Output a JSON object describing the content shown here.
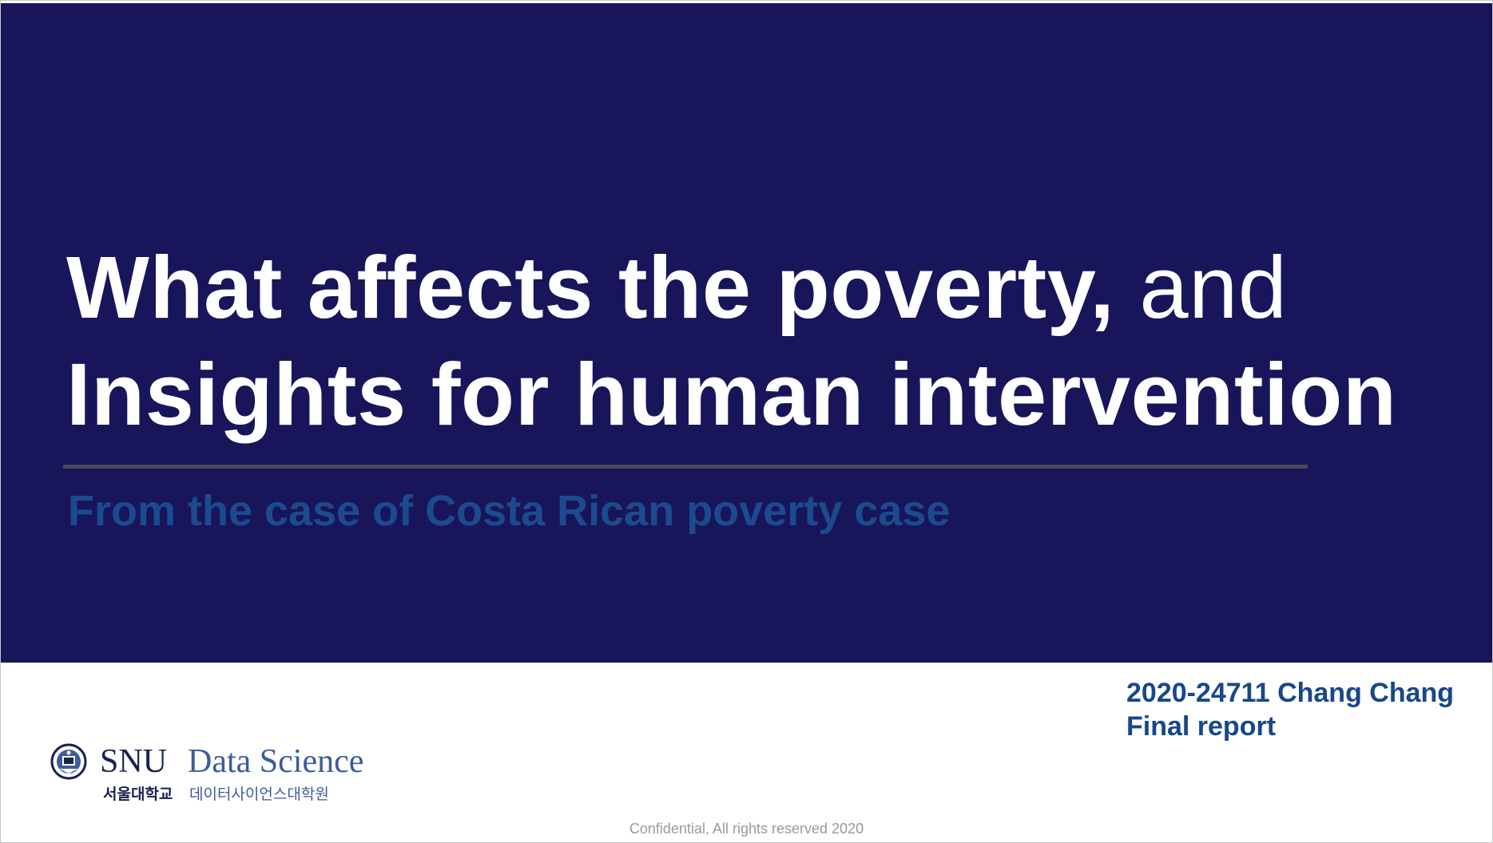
{
  "title": {
    "line1_bold": "What affects the poverty,",
    "line1_light": " and",
    "line2": "Insights for human intervention"
  },
  "subtitle": "From the case of Costa Rican poverty case",
  "author": {
    "line1": "2020-24711 Chang Chang",
    "line2": "Final report"
  },
  "logo": {
    "snu": "SNU",
    "data_science": "Data Science",
    "university_kr": "서울대학교",
    "graduate_school_kr": "데이터사이언스대학원"
  },
  "footer": "Confidential, All rights reserved 2020",
  "colors": {
    "banner": "#19155a",
    "subtitle": "#1b4b8e",
    "author": "#17478c",
    "rule": "#4b4a55"
  }
}
